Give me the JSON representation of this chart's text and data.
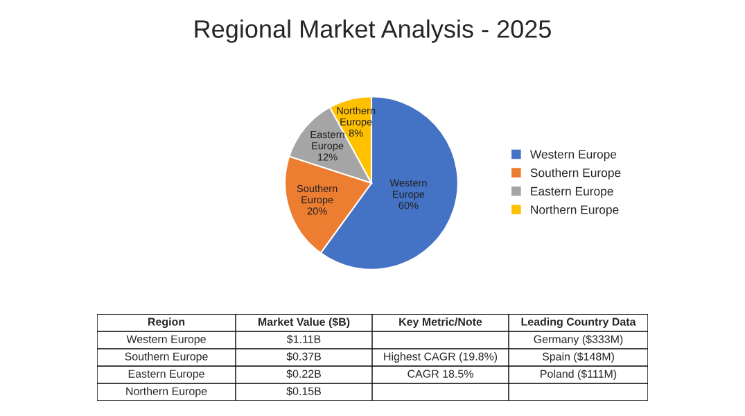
{
  "chart_data": [
    {
      "type": "pie",
      "title": "Regional Market Analysis - 2025",
      "categories": [
        "Western Europe",
        "Southern Europe",
        "Eastern Europe",
        "Northern Europe"
      ],
      "values": [
        60,
        20,
        12,
        8
      ],
      "value_labels": [
        "60%",
        "20%",
        "12%",
        "8%"
      ],
      "colors": [
        "#4472c4",
        "#ed7d31",
        "#a5a5a5",
        "#ffc000"
      ],
      "legend": "right"
    },
    {
      "type": "other",
      "categories": [
        "Region",
        "Market Value ($B)",
        "Key Metric/Note",
        "Leading Country Data"
      ],
      "cell_labels": [
        [
          "Western Europe",
          "$1.11B",
          null,
          "Germany ($333M)"
        ],
        [
          "Southern Europe",
          "$0.37B",
          "Highest CAGR (19.8%)",
          "Spain ($148M)"
        ],
        [
          "Eastern Europe",
          "$0.22B",
          "CAGR 18.5%",
          "Poland ($111M)"
        ],
        [
          "Northern Europe",
          "$0.15B",
          null,
          null
        ]
      ]
    }
  ]
}
